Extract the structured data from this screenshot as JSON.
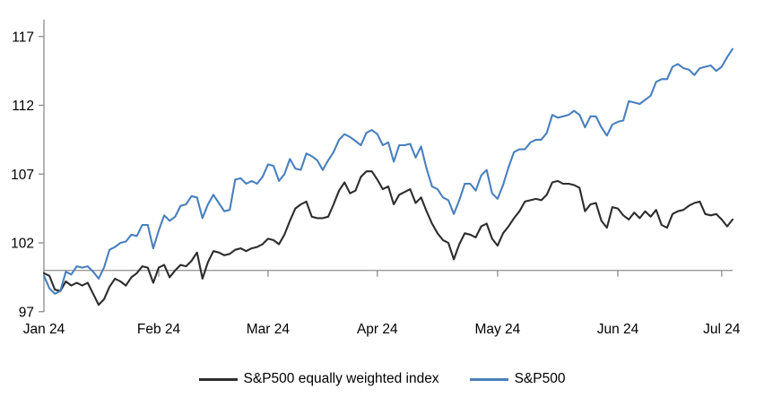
{
  "chart_data": {
    "type": "line",
    "x_unit": "trading days, Jan 2024 – early Jul 2024",
    "ylim": [
      97,
      117
    ],
    "y_ticks": [
      97,
      102,
      107,
      112,
      117
    ],
    "baseline_value": 100,
    "grid": "off",
    "legend_position": "bottom",
    "x_ticks": [
      {
        "label": "Jan 24",
        "index": 0
      },
      {
        "label": "Feb 24",
        "index": 21
      },
      {
        "label": "Mar 24",
        "index": 41
      },
      {
        "label": "Apr 24",
        "index": 61
      },
      {
        "label": "May 24",
        "index": 83
      },
      {
        "label": "Jun 24",
        "index": 105
      },
      {
        "label": "Jul 24",
        "index": 124
      }
    ],
    "series": [
      {
        "id": "sp500-equal-weight",
        "name": "S&P500 equally weighted index",
        "color": "#2d2d2d",
        "values": [
          99.8,
          99.6,
          98.6,
          98.5,
          99.2,
          98.9,
          99.1,
          98.9,
          99.1,
          98.3,
          97.5,
          97.9,
          98.8,
          99.4,
          99.2,
          98.9,
          99.5,
          99.8,
          100.3,
          100.2,
          99.1,
          100.2,
          100.4,
          99.5,
          100.0,
          100.4,
          100.3,
          100.7,
          101.3,
          99.4,
          100.6,
          101.4,
          101.3,
          101.1,
          101.2,
          101.5,
          101.6,
          101.4,
          101.6,
          101.7,
          101.9,
          102.3,
          102.2,
          101.9,
          102.6,
          103.6,
          104.5,
          104.8,
          105.0,
          103.9,
          103.8,
          103.8,
          103.9,
          104.8,
          105.8,
          106.4,
          105.6,
          105.8,
          106.8,
          107.2,
          107.2,
          106.6,
          105.9,
          106.1,
          104.8,
          105.5,
          105.7,
          105.9,
          104.9,
          105.3,
          104.3,
          103.4,
          102.7,
          102.2,
          102.0,
          100.8,
          101.9,
          102.7,
          102.6,
          102.4,
          103.2,
          103.4,
          102.3,
          101.8,
          102.7,
          103.2,
          103.8,
          104.3,
          105.0,
          105.1,
          105.2,
          105.1,
          105.5,
          106.4,
          106.5,
          106.3,
          106.3,
          106.2,
          106.0,
          104.3,
          104.8,
          104.9,
          103.6,
          103.1,
          104.6,
          104.5,
          104.0,
          103.7,
          104.2,
          103.8,
          104.3,
          103.9,
          104.4,
          103.3,
          103.1,
          104.1,
          104.3,
          104.4,
          104.7,
          104.9,
          105.0,
          104.1,
          104.0,
          104.1,
          103.7,
          103.2,
          103.7
        ]
      },
      {
        "id": "sp500",
        "name": "S&P500",
        "color": "#4a80bd",
        "values": [
          99.6,
          98.7,
          98.3,
          98.5,
          99.9,
          99.7,
          100.3,
          100.2,
          100.3,
          99.9,
          99.4,
          100.2,
          101.5,
          101.7,
          102.0,
          102.1,
          102.6,
          102.5,
          103.3,
          103.3,
          101.6,
          102.9,
          104.0,
          103.6,
          103.9,
          104.7,
          104.8,
          105.4,
          105.3,
          103.8,
          104.8,
          105.5,
          104.9,
          104.3,
          104.4,
          106.6,
          106.7,
          106.3,
          106.5,
          106.3,
          106.8,
          107.7,
          107.6,
          106.5,
          107.0,
          108.1,
          107.4,
          107.3,
          108.5,
          108.3,
          108.0,
          107.3,
          108.0,
          108.6,
          109.5,
          109.9,
          109.7,
          109.4,
          109.1,
          110.0,
          110.2,
          109.9,
          109.1,
          109.3,
          107.9,
          109.1,
          109.1,
          109.2,
          108.2,
          109.0,
          107.4,
          106.1,
          105.9,
          105.3,
          105.1,
          104.1,
          105.1,
          106.3,
          106.3,
          105.8,
          106.9,
          107.3,
          105.6,
          105.2,
          106.2,
          107.5,
          108.6,
          108.8,
          108.8,
          109.3,
          109.5,
          109.5,
          110.0,
          111.3,
          111.1,
          111.2,
          111.3,
          111.6,
          111.3,
          110.4,
          111.2,
          111.2,
          110.4,
          109.8,
          110.6,
          110.8,
          110.9,
          112.3,
          112.2,
          112.1,
          112.4,
          112.7,
          113.7,
          113.9,
          113.9,
          114.8,
          115.0,
          114.7,
          114.6,
          114.2,
          114.7,
          114.8,
          114.9,
          114.5,
          114.8,
          115.5,
          116.1
        ]
      }
    ],
    "colors": {
      "axis_spine": "#8c8c8c",
      "baseline": "#9a9a9a",
      "tick": "#8c8c8c",
      "text": "#000000"
    }
  },
  "legend": {
    "items": [
      {
        "label": "S&P500 equally weighted index",
        "color": "#2d2d2d"
      },
      {
        "label": "S&P500",
        "color": "#4a80bd"
      }
    ]
  }
}
